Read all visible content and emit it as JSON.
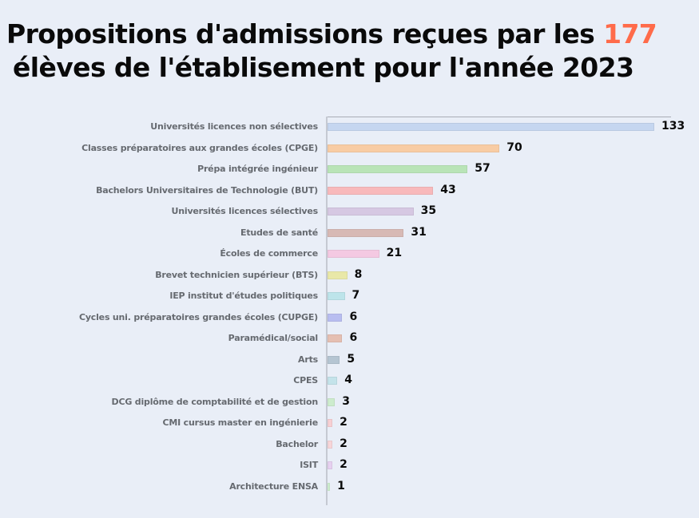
{
  "title": {
    "line1_prefix": "Propositions d'admissions reçues par les ",
    "highlight": "177",
    "line2": "élèves de l'établisement pour l'année 2023",
    "accent_color": "#ff6b4a"
  },
  "chart_data": {
    "type": "bar",
    "orientation": "horizontal",
    "title": "Propositions d'admissions reçues par les 177 élèves de l'établisement pour l'année 2023",
    "xlabel": "",
    "ylabel": "",
    "grid": false,
    "legend": null,
    "categories": [
      "Universités licences non sélectives",
      "Classes préparatoires aux grandes écoles (CPGE)",
      "Prépa intégrée ingénieur",
      "Bachelors Universitaires de Technologie (BUT)",
      "Universités licences sélectives",
      "Etudes de santé",
      "Écoles de commerce",
      "Brevet technicien supérieur (BTS)",
      "IEP institut d'études politiques",
      "Cycles uni. préparatoires grandes écoles (CUPGE)",
      "Paramédical/social",
      "Arts",
      "CPES",
      "DCG diplôme de comptabilité et de gestion",
      "CMI cursus master en ingénierie",
      "Bachelor",
      "ISIT",
      "Architecture ENSA"
    ],
    "values": [
      133,
      70,
      57,
      43,
      35,
      31,
      21,
      8,
      7,
      6,
      6,
      5,
      4,
      3,
      2,
      2,
      2,
      1
    ],
    "colors": [
      "#c5d6f0",
      "#f8cca4",
      "#b9e4b7",
      "#f8b9bb",
      "#d6c8e2",
      "#d7b9b5",
      "#f4c9e2",
      "#e9e8a8",
      "#bde4ea",
      "#b8bdf0",
      "#e5bfb2",
      "#b5c5d2",
      "#c4e3ea",
      "#cdeccd",
      "#f7cfd3",
      "#f7d5d8",
      "#e6d0f0",
      "#cff0cf"
    ],
    "xlim": [
      0,
      133
    ]
  }
}
